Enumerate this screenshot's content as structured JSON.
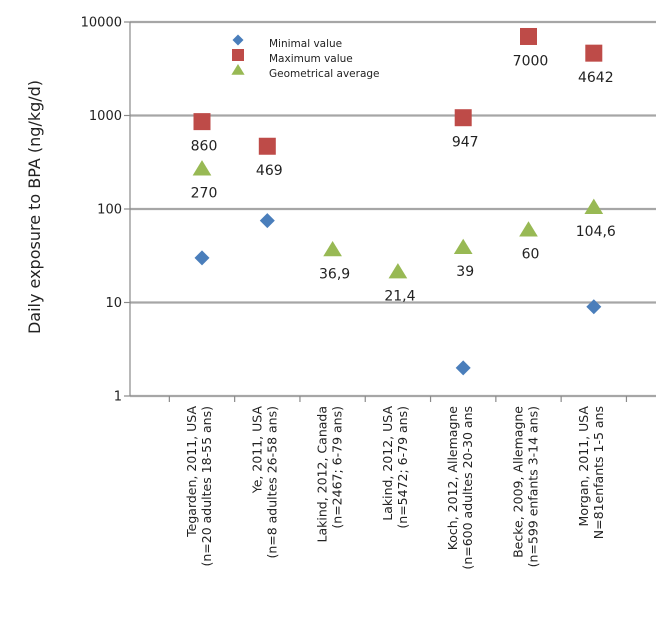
{
  "chart_data": {
    "type": "scatter",
    "ylabel": "Daily exposure to BPA (ng/kg/d)",
    "y_scale": "log",
    "ylim": [
      1,
      10000
    ],
    "grid": true,
    "legend_position": "top-center",
    "y_tick_labels": [
      "1",
      "10",
      "100",
      "1000",
      "10000"
    ],
    "categories": [
      [
        "Tegarden, 2011, USA",
        "(n=20 adultes 18-55 ans)"
      ],
      [
        "Ye, 2011, USA",
        "(n=8 adultes 26-58 ans)"
      ],
      [
        "Lakind, 2012, Canada",
        "(n=2467; 6-79 ans)"
      ],
      [
        "Lakind, 2012, USA",
        "(n=5472; 6-79 ans)"
      ],
      [
        "Koch, 2012, Allemagne",
        "(n=600 adultes 20-30 ans"
      ],
      [
        "Becke, 2009, Allemagne",
        "(n=599 enfants 3-14 ans)"
      ],
      [
        "Morgan, 2011, USA",
        "N=81enfants 1-5 ans"
      ]
    ],
    "series": [
      {
        "name": "Minimal value",
        "marker": "diamond",
        "color": "#4a7ebb",
        "values": [
          30,
          75,
          null,
          null,
          2,
          null,
          9
        ],
        "labels": [
          "",
          "",
          "",
          "",
          "",
          "",
          ""
        ]
      },
      {
        "name": "Maximum value",
        "marker": "square",
        "color": "#be4b48",
        "values": [
          860,
          469,
          null,
          null,
          947,
          7000,
          4642
        ],
        "labels": [
          "860",
          "469",
          "",
          "",
          "947",
          "7000",
          "4642"
        ]
      },
      {
        "name": "Geometrical average",
        "marker": "triangle",
        "color": "#98b954",
        "values": [
          270,
          null,
          36.9,
          21.4,
          39,
          60,
          104.6
        ],
        "labels": [
          "270",
          "",
          "36,9",
          "21,4",
          "39",
          "60",
          "104,6"
        ]
      }
    ]
  }
}
